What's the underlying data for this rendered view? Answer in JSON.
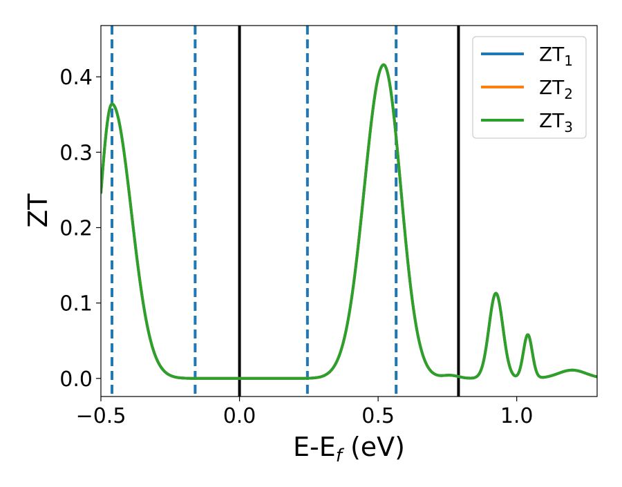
{
  "chart_data": {
    "type": "line",
    "title": "",
    "xlabel": "E-E",
    "xlabel_sub": "f",
    "xlabel_unit": " (eV)",
    "ylabel": "ZT",
    "xlim": [
      -0.5,
      1.29
    ],
    "ylim": [
      -0.024,
      0.468
    ],
    "x_ticks": [
      -0.5,
      0.0,
      0.5,
      1.0
    ],
    "x_tick_labels": [
      "−0.5",
      "0.0",
      "0.5",
      "1.0"
    ],
    "y_ticks": [
      0.0,
      0.1,
      0.2,
      0.3,
      0.4
    ],
    "y_tick_labels": [
      "0.0",
      "0.1",
      "0.2",
      "0.3",
      "0.4"
    ],
    "grid": false,
    "legend_position": "top-right",
    "series": [
      {
        "name": "ZT",
        "subscript": "1",
        "color": "#1f77b4",
        "peaks": [
          {
            "x0": -0.46,
            "a": 0.364,
            "wl": 0.045,
            "wr": 0.07
          },
          {
            "x0": 0.52,
            "a": 0.416,
            "wl": 0.07,
            "wr": 0.062
          },
          {
            "x0": 0.925,
            "a": 0.113,
            "w": 0.025
          },
          {
            "x0": 1.04,
            "a": 0.058,
            "w": 0.016
          },
          {
            "x0": 1.2,
            "a": 0.011,
            "w": 0.05
          },
          {
            "x0": 0.76,
            "a": 0.004,
            "w": 0.03
          }
        ]
      },
      {
        "name": "ZT",
        "subscript": "2",
        "color": "#ff7f0e",
        "peaks": [
          {
            "x0": -0.46,
            "a": 0.364,
            "wl": 0.045,
            "wr": 0.07
          },
          {
            "x0": 0.52,
            "a": 0.416,
            "wl": 0.07,
            "wr": 0.062
          },
          {
            "x0": 0.925,
            "a": 0.113,
            "w": 0.025
          },
          {
            "x0": 1.04,
            "a": 0.058,
            "w": 0.016
          },
          {
            "x0": 1.2,
            "a": 0.011,
            "w": 0.05
          },
          {
            "x0": 0.76,
            "a": 0.004,
            "w": 0.03
          }
        ]
      },
      {
        "name": "ZT",
        "subscript": "3",
        "color": "#2ca02c",
        "peaks": [
          {
            "x0": -0.46,
            "a": 0.364,
            "wl": 0.045,
            "wr": 0.07
          },
          {
            "x0": 0.52,
            "a": 0.416,
            "wl": 0.07,
            "wr": 0.062
          },
          {
            "x0": 0.925,
            "a": 0.113,
            "w": 0.025
          },
          {
            "x0": 1.04,
            "a": 0.058,
            "w": 0.016
          },
          {
            "x0": 1.2,
            "a": 0.011,
            "w": 0.05
          },
          {
            "x0": 0.76,
            "a": 0.004,
            "w": 0.03
          }
        ]
      }
    ],
    "vertical_lines": [
      {
        "x": -0.46,
        "style": "dashed",
        "color": "#1f77b4"
      },
      {
        "x": -0.16,
        "style": "dashed",
        "color": "#1f77b4"
      },
      {
        "x": 0.0,
        "style": "solid",
        "color": "#000000"
      },
      {
        "x": 0.245,
        "style": "dashed",
        "color": "#1f77b4"
      },
      {
        "x": 0.565,
        "style": "dashed",
        "color": "#1f77b4"
      },
      {
        "x": 0.79,
        "style": "solid",
        "color": "#000000"
      }
    ]
  }
}
